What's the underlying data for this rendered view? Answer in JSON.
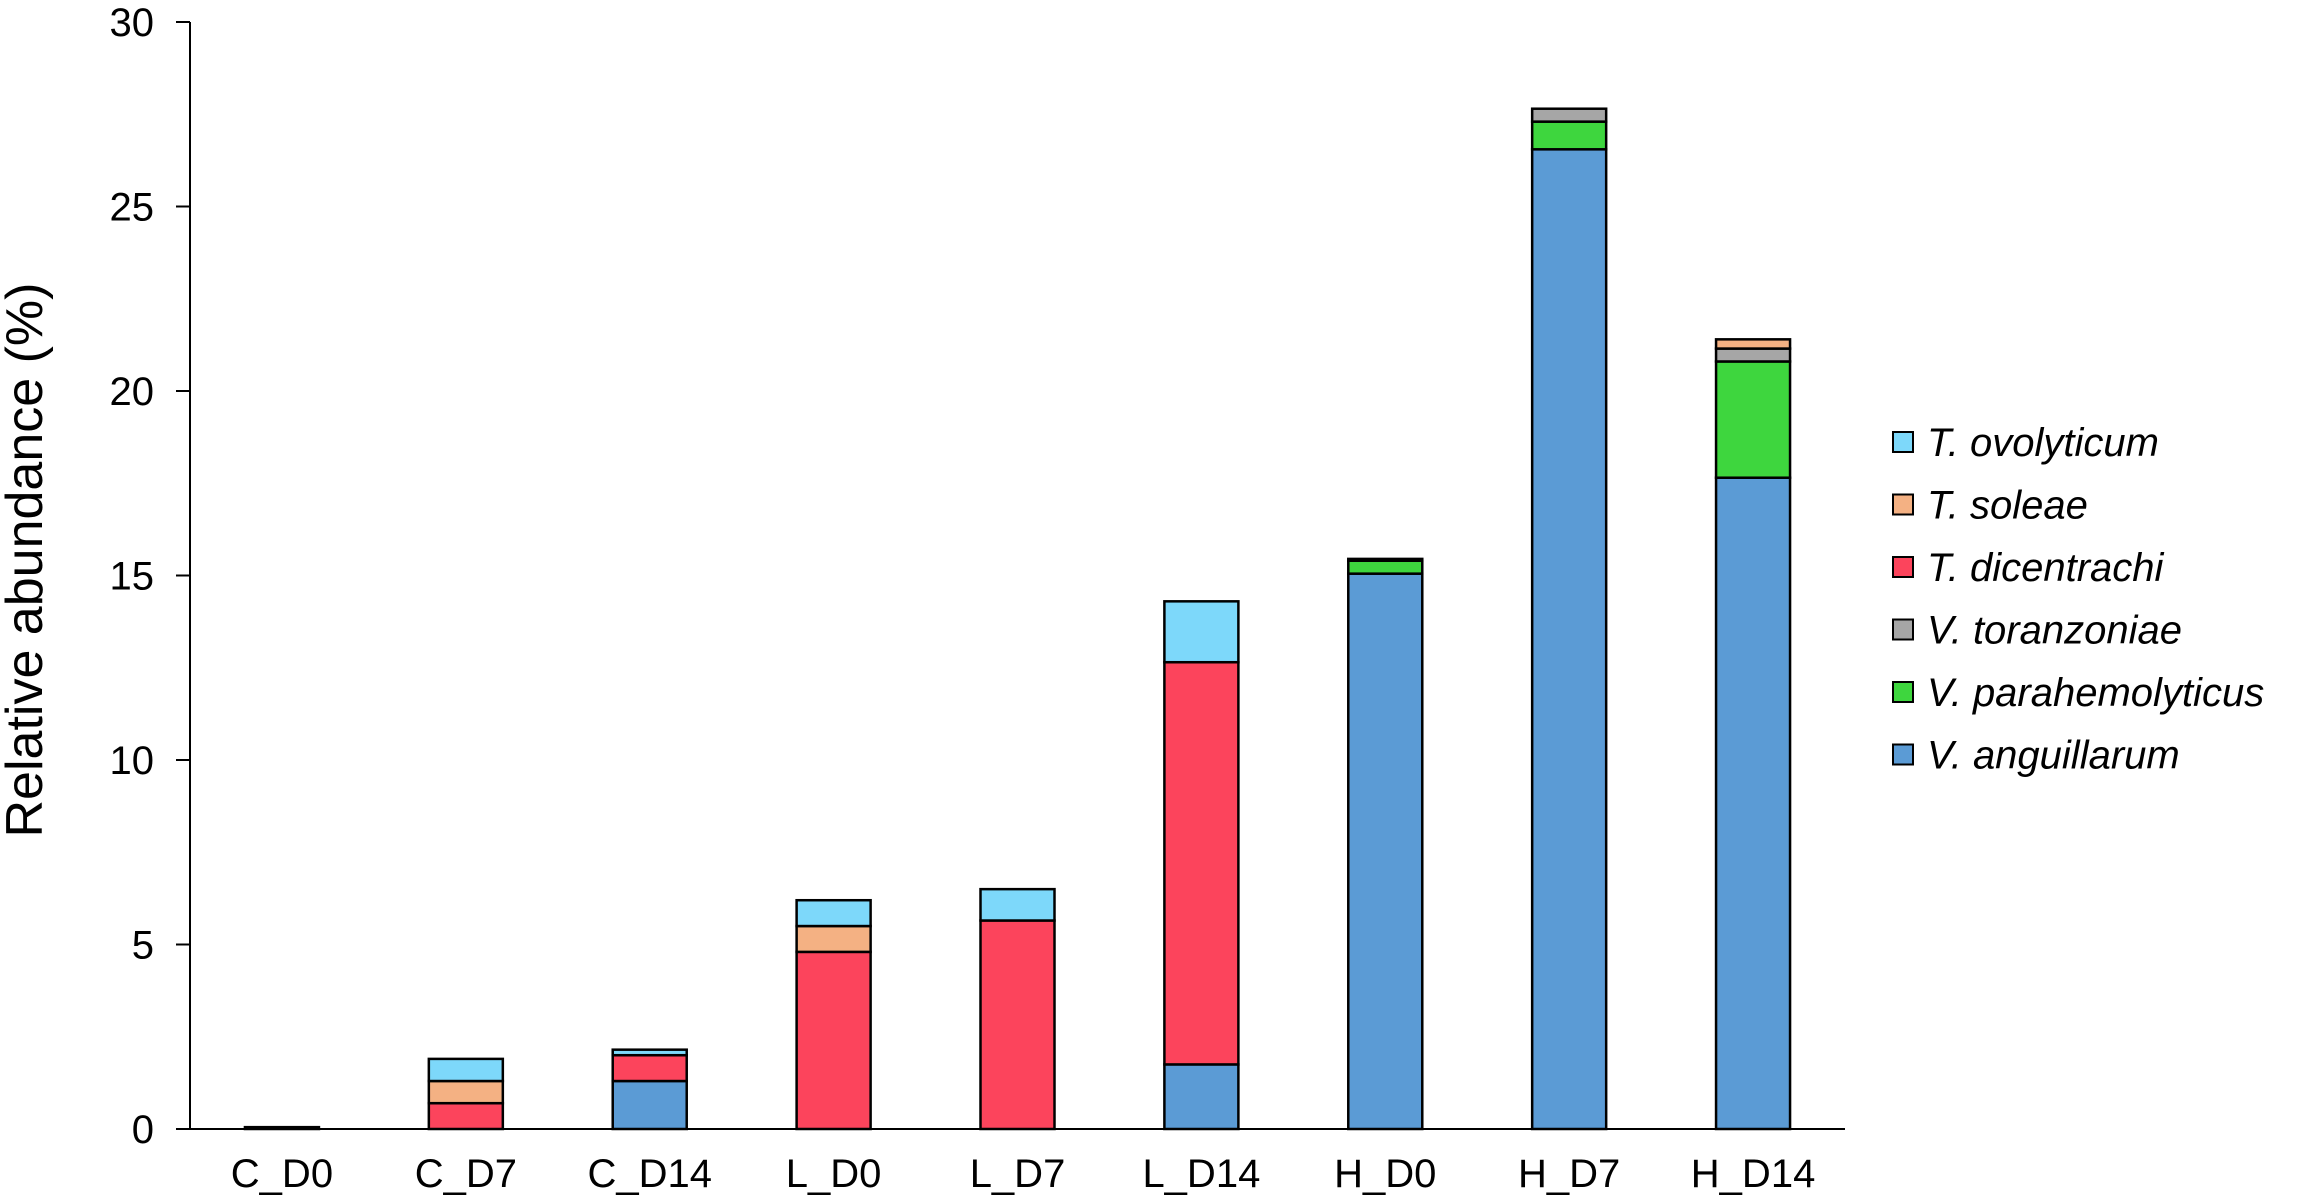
{
  "chart_data": {
    "type": "bar",
    "stacked": true,
    "title": "",
    "xlabel": "",
    "ylabel": "Relative abundance (%)",
    "ylim": [
      0,
      30
    ],
    "yticks": [
      "0",
      "5",
      "10",
      "15",
      "20",
      "25",
      "30"
    ],
    "grid": false,
    "legend_position": "right",
    "categories": [
      "C_D0",
      "C_D7",
      "C_D14",
      "L_D0",
      "L_D7",
      "L_D14",
      "H_D0",
      "H_D7",
      "H_D14"
    ],
    "series": [
      {
        "name": "V. anguillarum",
        "color": "#5b9bd5",
        "values": [
          0,
          0,
          1.3,
          0,
          0,
          1.75,
          15.05,
          26.55,
          17.65
        ]
      },
      {
        "name": "V. parahemolyticus",
        "color": "#3ed63e",
        "values": [
          0,
          0,
          0,
          0,
          0,
          0,
          0.35,
          0.75,
          3.15
        ]
      },
      {
        "name": "V. toranzoniae",
        "color": "#a6a6a6",
        "values": [
          0,
          0,
          0,
          0,
          0,
          0,
          0.05,
          0.35,
          0.35
        ]
      },
      {
        "name": "T. dicentrachi",
        "color": "#fc445c",
        "values": [
          0.05,
          0.7,
          0.7,
          4.8,
          5.65,
          10.9,
          0,
          0,
          0
        ]
      },
      {
        "name": "T. soleae",
        "color": "#f4b183",
        "values": [
          0,
          0.6,
          0,
          0.7,
          0,
          0,
          0,
          0,
          0.25
        ]
      },
      {
        "name": "T. ovolyticum",
        "color": "#7dd8fa",
        "values": [
          0,
          0.6,
          0.15,
          0.7,
          0.85,
          1.65,
          0,
          0,
          0
        ]
      }
    ],
    "legend_order": [
      "T. ovolyticum",
      "T. soleae",
      "T. dicentrachi",
      "V. toranzoniae",
      "V. parahemolyticus",
      "V. anguillarum"
    ]
  }
}
